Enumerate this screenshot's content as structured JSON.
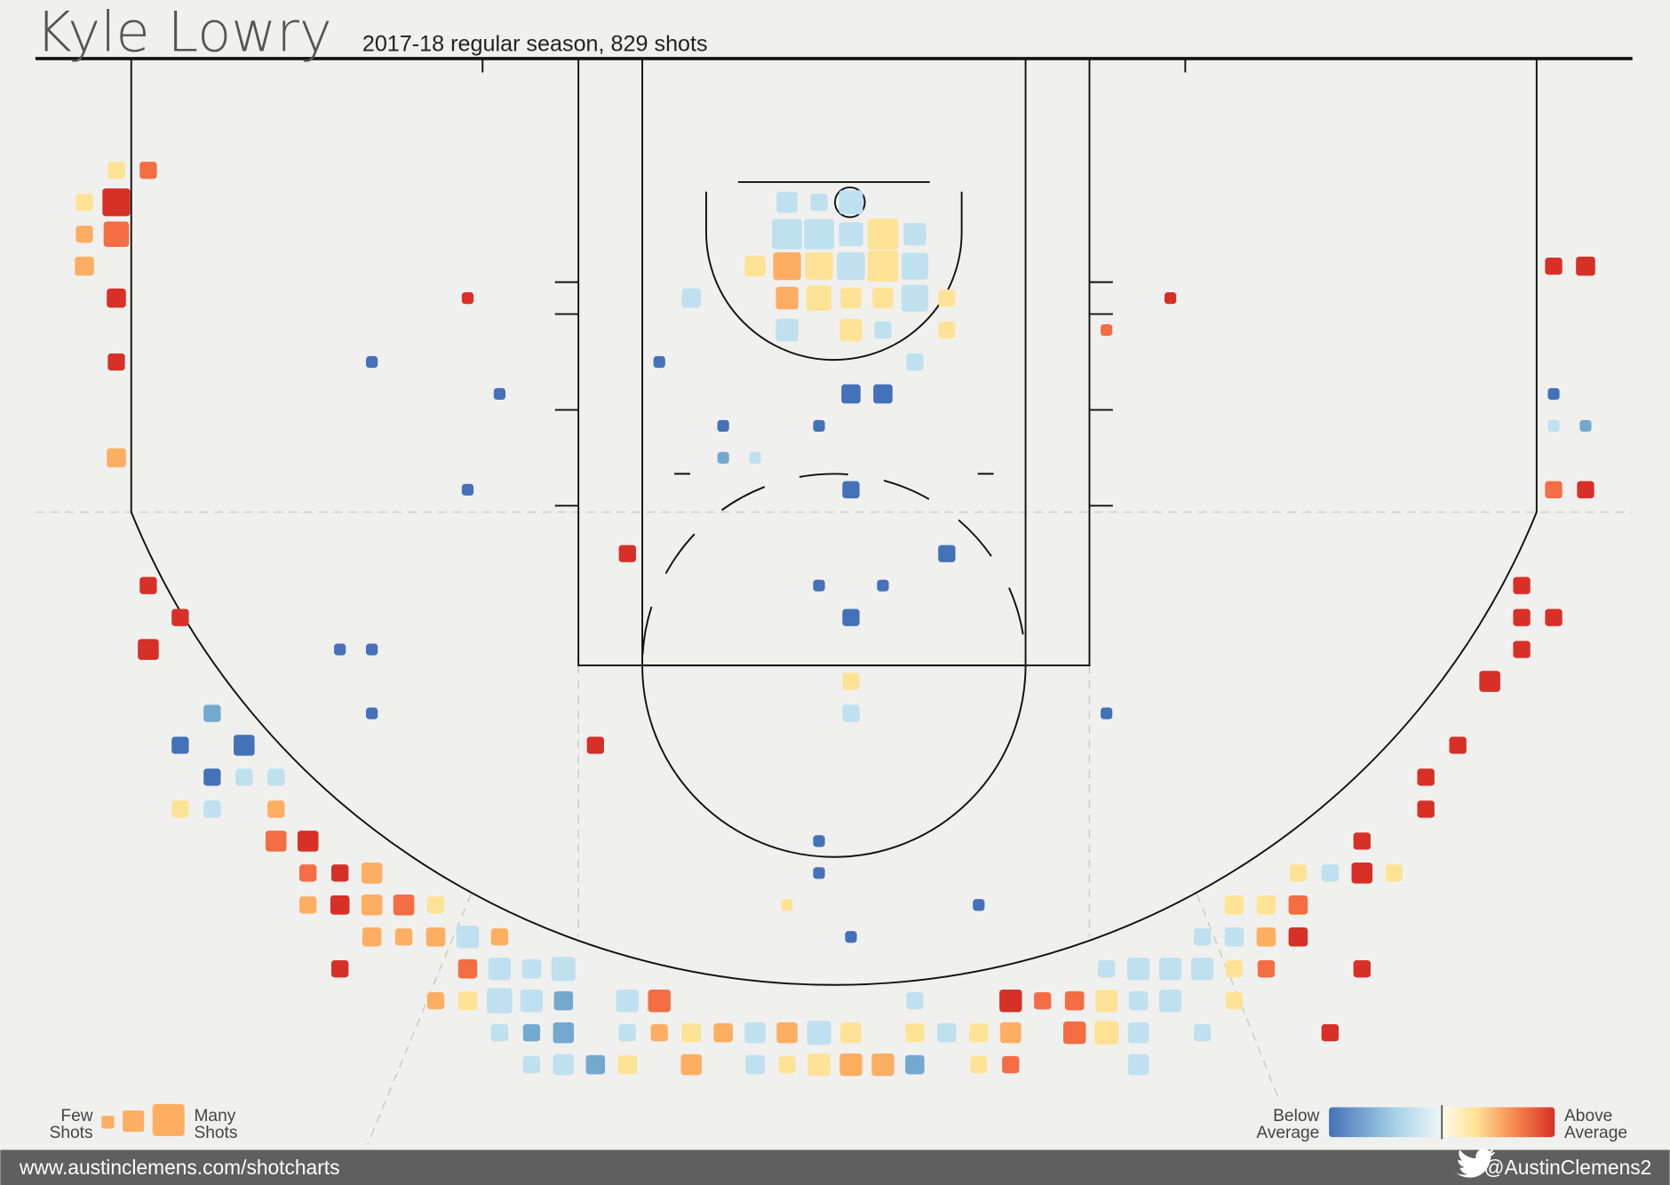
{
  "chart_data": {
    "type": "shotchart",
    "title": "Kyle Lowry",
    "subtitle": "2017-18 regular season, 829 shots",
    "palette": [
      "#4472b8",
      "#74a9cf",
      "#bfe0ee",
      "#fee397",
      "#fdae61",
      "#f46d43",
      "#d73027"
    ],
    "shots": [
      [
        -22.5,
        3.5,
        3,
        3
      ],
      [
        -21.5,
        3.5,
        3,
        5
      ],
      [
        -23.5,
        4.5,
        3,
        3
      ],
      [
        -22.5,
        4.5,
        10,
        6
      ],
      [
        -23.5,
        5.5,
        3,
        4
      ],
      [
        -22.5,
        5.5,
        8,
        5
      ],
      [
        -23.5,
        6.5,
        4,
        4
      ],
      [
        -22.5,
        7.5,
        4,
        6
      ],
      [
        -22.5,
        9.5,
        3,
        6
      ],
      [
        -22.5,
        12.5,
        4,
        4
      ],
      [
        -11.5,
        7.5,
        1,
        6
      ],
      [
        -14.5,
        9.5,
        1,
        0
      ],
      [
        -10.5,
        10.5,
        1,
        0
      ],
      [
        -11.5,
        13.5,
        1,
        0
      ],
      [
        -5.5,
        9.5,
        1,
        0
      ],
      [
        -1.5,
        4.5,
        5,
        2
      ],
      [
        -0.5,
        4.5,
        3,
        2
      ],
      [
        0.5,
        4.5,
        7,
        2
      ],
      [
        -1.5,
        5.5,
        12,
        2
      ],
      [
        -0.5,
        5.5,
        12,
        2
      ],
      [
        0.5,
        5.5,
        7,
        2
      ],
      [
        1.5,
        5.5,
        13,
        3
      ],
      [
        2.5,
        5.5,
        6,
        2
      ],
      [
        -2.5,
        6.5,
        5,
        3
      ],
      [
        -1.5,
        6.5,
        10,
        4
      ],
      [
        -0.5,
        6.5,
        10,
        3
      ],
      [
        0.5,
        6.5,
        10,
        2
      ],
      [
        1.5,
        6.5,
        13,
        3
      ],
      [
        2.5,
        6.5,
        9,
        2
      ],
      [
        -4.5,
        7.5,
        4,
        2
      ],
      [
        -1.5,
        7.5,
        6,
        4
      ],
      [
        -0.5,
        7.5,
        8,
        3
      ],
      [
        0.5,
        7.5,
        5,
        3
      ],
      [
        1.5,
        7.5,
        5,
        3
      ],
      [
        2.5,
        7.5,
        9,
        2
      ],
      [
        3.5,
        7.5,
        3,
        3
      ],
      [
        -1.5,
        8.5,
        6,
        2
      ],
      [
        0.5,
        8.5,
        6,
        3
      ],
      [
        1.5,
        8.5,
        3,
        2
      ],
      [
        3.5,
        8.5,
        3,
        3
      ],
      [
        2.5,
        9.5,
        3,
        2
      ],
      [
        0.5,
        10.5,
        4,
        0
      ],
      [
        1.5,
        10.5,
        4,
        0
      ],
      [
        -3.5,
        11.5,
        1,
        0
      ],
      [
        -0.5,
        11.5,
        1,
        0
      ],
      [
        -3.5,
        12.5,
        1,
        1
      ],
      [
        -2.5,
        12.5,
        1,
        2
      ],
      [
        0.5,
        13.5,
        3,
        0
      ],
      [
        -6.5,
        15.5,
        3,
        6
      ],
      [
        3.5,
        15.5,
        3,
        0
      ],
      [
        -0.5,
        16.5,
        1,
        0
      ],
      [
        1.5,
        16.5,
        1,
        0
      ],
      [
        0.5,
        17.5,
        3,
        0
      ],
      [
        -15.5,
        18.5,
        1,
        0
      ],
      [
        -14.5,
        18.5,
        1,
        0
      ],
      [
        0.5,
        19.5,
        3,
        3
      ],
      [
        -14.5,
        20.5,
        1,
        0
      ],
      [
        0.5,
        20.5,
        3,
        2
      ],
      [
        8.5,
        20.5,
        1,
        0
      ],
      [
        -7.5,
        21.5,
        3,
        6
      ],
      [
        -0.5,
        24.5,
        1,
        0
      ],
      [
        -0.5,
        25.5,
        1,
        0
      ],
      [
        -1.5,
        26.5,
        1,
        3
      ],
      [
        4.5,
        26.5,
        1,
        0
      ],
      [
        0.5,
        27.5,
        1,
        0
      ],
      [
        10.5,
        7.5,
        1,
        6
      ],
      [
        8.5,
        8.5,
        1,
        5
      ],
      [
        22.5,
        6.5,
        3,
        6
      ],
      [
        23.5,
        6.5,
        4,
        6
      ],
      [
        22.5,
        10.5,
        1,
        0
      ],
      [
        22.5,
        11.5,
        1,
        2
      ],
      [
        23.5,
        11.5,
        1,
        1
      ],
      [
        22.5,
        13.5,
        3,
        5
      ],
      [
        23.5,
        13.5,
        3,
        6
      ],
      [
        21.5,
        16.5,
        3,
        6
      ],
      [
        21.5,
        17.5,
        3,
        6
      ],
      [
        22.5,
        17.5,
        3,
        6
      ],
      [
        21.5,
        18.5,
        3,
        6
      ],
      [
        20.5,
        19.5,
        5,
        6
      ],
      [
        19.5,
        21.5,
        3,
        6
      ],
      [
        18.5,
        22.5,
        3,
        6
      ],
      [
        18.5,
        23.5,
        3,
        6
      ],
      [
        16.5,
        24.5,
        3,
        6
      ],
      [
        14.5,
        25.5,
        3,
        3
      ],
      [
        15.5,
        25.5,
        3,
        2
      ],
      [
        16.5,
        25.5,
        5,
        6
      ],
      [
        17.5,
        25.5,
        3,
        3
      ],
      [
        12.5,
        26.5,
        4,
        3
      ],
      [
        13.5,
        26.5,
        4,
        3
      ],
      [
        14.5,
        26.5,
        4,
        5
      ],
      [
        11.5,
        27.5,
        3,
        2
      ],
      [
        12.5,
        27.5,
        4,
        2
      ],
      [
        13.5,
        27.5,
        4,
        4
      ],
      [
        14.5,
        27.5,
        4,
        6
      ],
      [
        8.5,
        28.5,
        3,
        2
      ],
      [
        9.5,
        28.5,
        6,
        2
      ],
      [
        10.5,
        28.5,
        6,
        2
      ],
      [
        11.5,
        28.5,
        6,
        2
      ],
      [
        12.5,
        28.5,
        3,
        3
      ],
      [
        13.5,
        28.5,
        3,
        5
      ],
      [
        16.5,
        28.5,
        3,
        6
      ],
      [
        -12.5,
        29.5,
        3,
        4
      ],
      [
        -11.5,
        29.5,
        4,
        3
      ],
      [
        -10.5,
        29.5,
        8,
        2
      ],
      [
        -9.5,
        29.5,
        6,
        2
      ],
      [
        -8.5,
        29.5,
        4,
        1
      ],
      [
        -6.5,
        29.5,
        6,
        2
      ],
      [
        -5.5,
        29.5,
        6,
        5
      ],
      [
        2.5,
        29.5,
        3,
        2
      ],
      [
        5.5,
        29.5,
        6,
        6
      ],
      [
        6.5,
        29.5,
        3,
        5
      ],
      [
        7.5,
        29.5,
        4,
        5
      ],
      [
        8.5,
        29.5,
        6,
        3
      ],
      [
        9.5,
        29.5,
        4,
        2
      ],
      [
        10.5,
        29.5,
        6,
        2
      ],
      [
        12.5,
        29.5,
        3,
        3
      ],
      [
        -10.5,
        30.5,
        3,
        2
      ],
      [
        -9.5,
        30.5,
        3,
        1
      ],
      [
        -8.5,
        30.5,
        5,
        1
      ],
      [
        -6.5,
        30.5,
        3,
        2
      ],
      [
        -5.5,
        30.5,
        3,
        4
      ],
      [
        -4.5,
        30.5,
        4,
        3
      ],
      [
        -3.5,
        30.5,
        4,
        4
      ],
      [
        -2.5,
        30.5,
        5,
        2
      ],
      [
        -1.5,
        30.5,
        5,
        4
      ],
      [
        -0.5,
        30.5,
        7,
        2
      ],
      [
        0.5,
        30.5,
        5,
        3
      ],
      [
        2.5,
        30.5,
        4,
        3
      ],
      [
        3.5,
        30.5,
        4,
        2
      ],
      [
        4.5,
        30.5,
        4,
        3
      ],
      [
        5.5,
        30.5,
        5,
        4
      ],
      [
        7.5,
        30.5,
        6,
        5
      ],
      [
        8.5,
        30.5,
        7,
        3
      ],
      [
        9.5,
        30.5,
        5,
        2
      ],
      [
        11.5,
        30.5,
        3,
        2
      ],
      [
        15.5,
        30.5,
        3,
        6
      ],
      [
        -9.5,
        31.5,
        3,
        2
      ],
      [
        -8.5,
        31.5,
        5,
        2
      ],
      [
        -7.5,
        31.5,
        4,
        1
      ],
      [
        -6.5,
        31.5,
        4,
        3
      ],
      [
        -4.5,
        31.5,
        5,
        4
      ],
      [
        -2.5,
        31.5,
        4,
        2
      ],
      [
        -1.5,
        31.5,
        3,
        3
      ],
      [
        -0.5,
        31.5,
        6,
        3
      ],
      [
        0.5,
        31.5,
        6,
        4
      ],
      [
        1.5,
        31.5,
        6,
        4
      ],
      [
        2.5,
        31.5,
        4,
        1
      ],
      [
        4.5,
        31.5,
        3,
        3
      ],
      [
        5.5,
        31.5,
        3,
        5
      ],
      [
        9.5,
        31.5,
        5,
        2
      ],
      [
        -21.5,
        16.5,
        3,
        6
      ],
      [
        -20.5,
        17.5,
        3,
        6
      ],
      [
        -21.5,
        18.5,
        5,
        6
      ],
      [
        -19.5,
        20.5,
        3,
        1
      ],
      [
        -20.5,
        21.5,
        3,
        0
      ],
      [
        -18.5,
        21.5,
        5,
        0
      ],
      [
        -19.5,
        22.5,
        3,
        0
      ],
      [
        -18.5,
        22.5,
        3,
        2
      ],
      [
        -17.5,
        22.5,
        3,
        2
      ],
      [
        -20.5,
        23.5,
        3,
        3
      ],
      [
        -19.5,
        23.5,
        3,
        2
      ],
      [
        -17.5,
        23.5,
        3,
        4
      ],
      [
        -17.5,
        24.5,
        5,
        5
      ],
      [
        -16.5,
        24.5,
        5,
        6
      ],
      [
        -16.5,
        25.5,
        3,
        5
      ],
      [
        -15.5,
        25.5,
        3,
        6
      ],
      [
        -14.5,
        25.5,
        5,
        4
      ],
      [
        -16.5,
        26.5,
        3,
        4
      ],
      [
        -15.5,
        26.5,
        4,
        6
      ],
      [
        -14.5,
        26.5,
        5,
        4
      ],
      [
        -13.5,
        26.5,
        5,
        5
      ],
      [
        -12.5,
        26.5,
        3,
        3
      ],
      [
        -14.5,
        27.5,
        4,
        4
      ],
      [
        -13.5,
        27.5,
        3,
        4
      ],
      [
        -12.5,
        27.5,
        4,
        4
      ],
      [
        -11.5,
        27.5,
        6,
        2
      ],
      [
        -10.5,
        27.5,
        3,
        4
      ],
      [
        -15.5,
        28.5,
        3,
        6
      ],
      [
        -11.5,
        28.5,
        4,
        5
      ],
      [
        -10.5,
        28.5,
        6,
        2
      ],
      [
        -9.5,
        28.5,
        4,
        2
      ],
      [
        -8.5,
        28.5,
        7,
        2
      ]
    ],
    "legend": {
      "few": [
        "Few",
        "Shots"
      ],
      "many": [
        "Many",
        "Shots"
      ],
      "below": [
        "Below",
        "Average"
      ],
      "above": [
        "Above",
        "Average"
      ]
    }
  },
  "footer": {
    "url": "www.austinclemens.com/shotcharts",
    "handle": "@AustinClemens2"
  }
}
